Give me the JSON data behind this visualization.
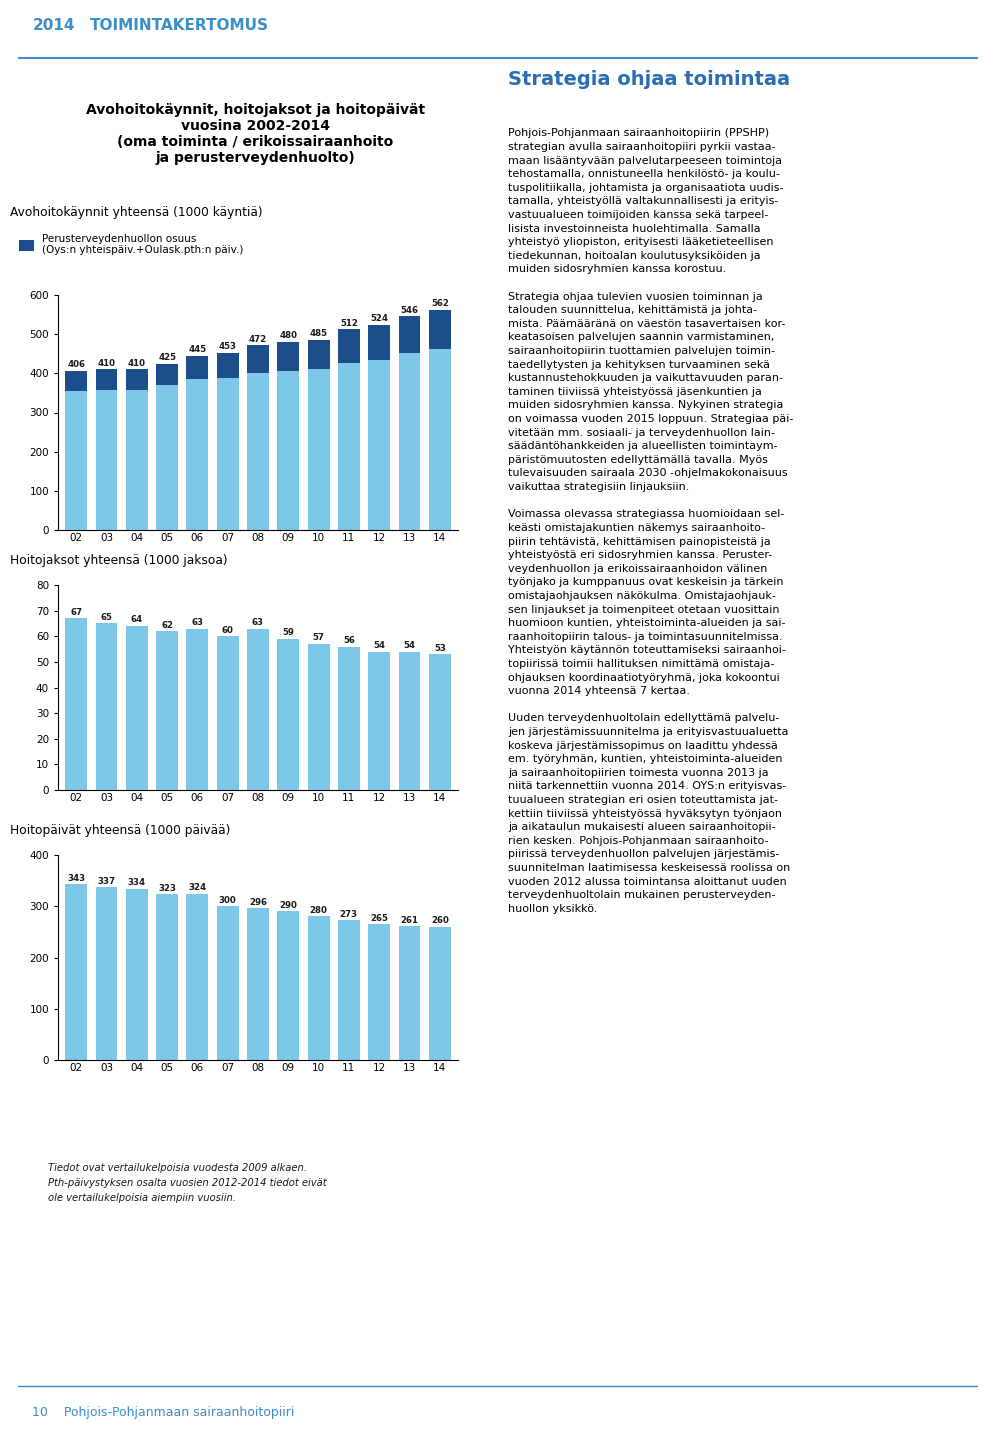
{
  "years": [
    "02",
    "03",
    "04",
    "05",
    "06",
    "07",
    "08",
    "09",
    "10",
    "11",
    "12",
    "13",
    "14"
  ],
  "chart1_title": "Avohoitokäynnit yhteensä (1000 käyntiä)",
  "chart1_legend": "Perusterveydenhuollon osuus\n(Oys:n yhteispäiv.+Oulask.pth:n päiv.)",
  "chart1_values": [
    406,
    410,
    410,
    425,
    445,
    453,
    472,
    480,
    485,
    512,
    524,
    546,
    562
  ],
  "chart1_dark_heights": [
    50,
    52,
    52,
    55,
    60,
    65,
    70,
    75,
    75,
    85,
    90,
    95,
    100
  ],
  "chart2_title": "Hoitojaksot yhteensä (1000 jaksoa)",
  "chart2_values": [
    67,
    65,
    64,
    62,
    63,
    60,
    63,
    59,
    57,
    56,
    54,
    54,
    53
  ],
  "chart3_title": "Hoitopäivät yhteensä (1000 päivää)",
  "chart3_values": [
    343,
    337,
    334,
    323,
    324,
    300,
    296,
    290,
    280,
    273,
    265,
    261,
    260
  ],
  "footnote1": "Tiedot ovat vertailukelpoisia vuodesta 2009 alkaen.",
  "footnote23": "Pth-päivystyksen osalta vuosien 2012-2014 tiedot eivät\nole vertailukelpoisia aiempiin vuosiin.",
  "bottom_text": "10    Pohjois-Pohjanmaan sairaanhoitopiiri",
  "header_year": "2014",
  "header_title": "TOIMINTAKERTOMUS",
  "box_title": "Avohoitokäynnit, hoitojaksot ja hoitopäivät\nvuosina 2002-2014\n(oma toiminta / erikoissairaanhoito\nja perusterveydenhuolto)",
  "right_heading": "Strategia ohjaa toimintaa",
  "bar_light": "#7DC8E8",
  "bar_dark": "#1C4E8C",
  "light_bg": "#D8EEF8",
  "white_bg": "#FFFFFF",
  "header_blue": "#3B8EC8",
  "title_blue": "#2A6DB0",
  "text_black": "#1A1A1A",
  "bar_last": "#52B8E0"
}
